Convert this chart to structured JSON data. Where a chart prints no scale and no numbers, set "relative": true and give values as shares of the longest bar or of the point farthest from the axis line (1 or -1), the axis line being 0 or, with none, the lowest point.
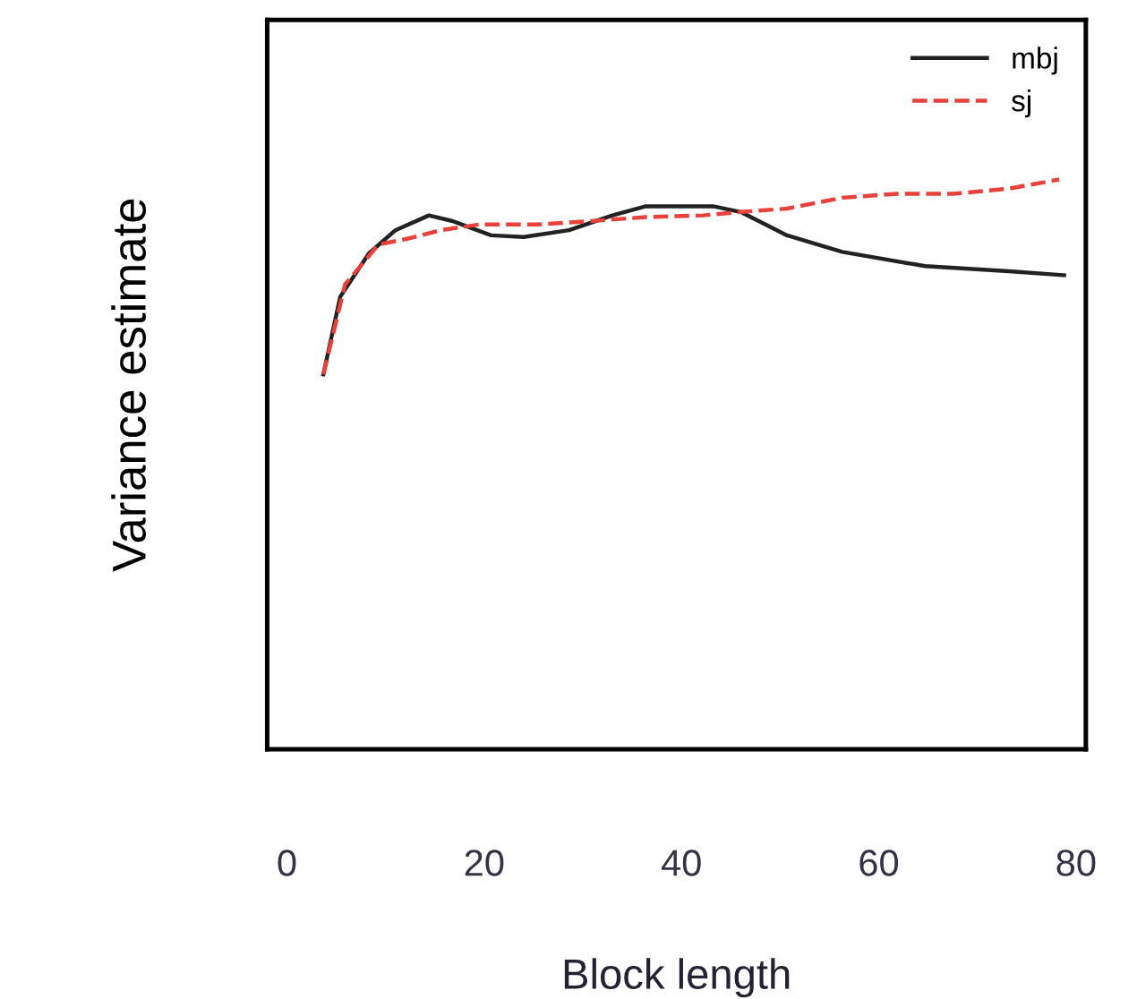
{
  "chart_data": {
    "type": "line",
    "relative": true,
    "xlabel": "Block length",
    "ylabel": "Variance estimate",
    "xlim": [
      -2,
      81
    ],
    "xticks": [
      0,
      20,
      40,
      60,
      80
    ],
    "tick_labels": "x",
    "grid": false,
    "legend": "top right",
    "marker": "none",
    "series": [
      {
        "name": "mbj",
        "color": "#222222",
        "line_style": "solid",
        "x": [
          3.7,
          5.4,
          8.3,
          11,
          14.4,
          16.8,
          20.7,
          24,
          28.6,
          33,
          36.4,
          43.2,
          46,
          50.7,
          56.3,
          64.7,
          73.2,
          78.8
        ],
        "values": [
          0.658,
          0.794,
          0.87,
          0.911,
          0.937,
          0.927,
          0.902,
          0.899,
          0.911,
          0.937,
          0.953,
          0.953,
          0.943,
          0.902,
          0.873,
          0.848,
          0.839,
          0.832
        ]
      },
      {
        "name": "sj",
        "color": "#e8403a",
        "line_style": "dashed",
        "x": [
          3.7,
          5.9,
          9.3,
          12.2,
          15.6,
          19.5,
          25.3,
          30.8,
          36.4,
          42.2,
          46,
          50.7,
          56.3,
          61.9,
          67.6,
          73.2,
          78.3
        ],
        "values": [
          0.658,
          0.816,
          0.886,
          0.896,
          0.911,
          0.921,
          0.921,
          0.927,
          0.934,
          0.937,
          0.943,
          0.949,
          0.968,
          0.975,
          0.975,
          0.984,
          1.0
        ]
      }
    ]
  }
}
